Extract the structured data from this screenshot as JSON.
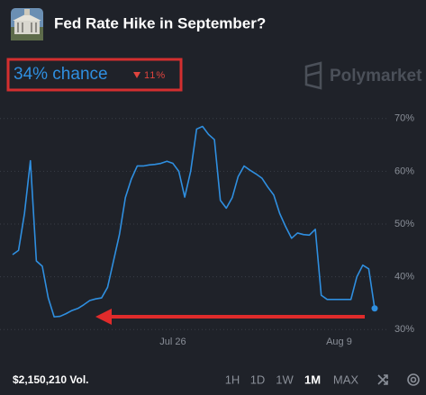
{
  "header": {
    "title": "Fed Rate Hike in September?",
    "chance": "34% chance",
    "change": "11%",
    "brand": "Polymarket"
  },
  "chart_data": {
    "type": "line",
    "categories": [
      null,
      null,
      null,
      null,
      null,
      null,
      null,
      null,
      null,
      null,
      null,
      null,
      null,
      null,
      null,
      null,
      null,
      null,
      null,
      null,
      null,
      null,
      null,
      null,
      null,
      null,
      null,
      "Jul 26",
      null,
      null,
      null,
      null,
      null,
      null,
      null,
      null,
      null,
      null,
      null,
      null,
      null,
      null,
      null,
      null,
      null,
      null,
      null,
      null,
      null,
      null,
      null,
      null,
      null,
      null,
      null,
      "Aug 9",
      null,
      null,
      null,
      null,
      null,
      null
    ],
    "values": [
      44.2,
      45,
      52,
      62,
      43,
      42,
      36,
      32.4,
      32.5,
      33,
      33.6,
      34,
      34.7,
      35.5,
      35.8,
      36,
      38,
      43,
      48,
      55,
      58.5,
      61,
      61,
      61.2,
      61.3,
      61.5,
      61.9,
      61.5,
      60,
      55.1,
      60,
      68,
      68.5,
      67,
      66,
      54.5,
      53,
      55,
      59,
      61,
      60.2,
      59.5,
      58.7,
      57,
      55.5,
      52,
      49.5,
      47.3,
      48.3,
      48,
      47.9,
      49,
      36.5,
      35.7,
      35.7,
      35.7,
      35.7,
      35.7,
      40,
      42.2,
      41.5,
      34
    ],
    "color": "#2f8fe0",
    "ylim": [
      28.5,
      72
    ],
    "yticks": [
      {
        "value": 30,
        "label": "30%"
      },
      {
        "value": 40,
        "label": "40%"
      },
      {
        "value": 50,
        "label": "50%"
      },
      {
        "value": 60,
        "label": "60%"
      },
      {
        "value": 70,
        "label": "70%"
      }
    ],
    "grid": true
  },
  "footer": {
    "volume": "$2,150,210 Vol.",
    "ranges": [
      "1H",
      "1D",
      "1W",
      "1M",
      "MAX"
    ],
    "selected_range": 3
  }
}
